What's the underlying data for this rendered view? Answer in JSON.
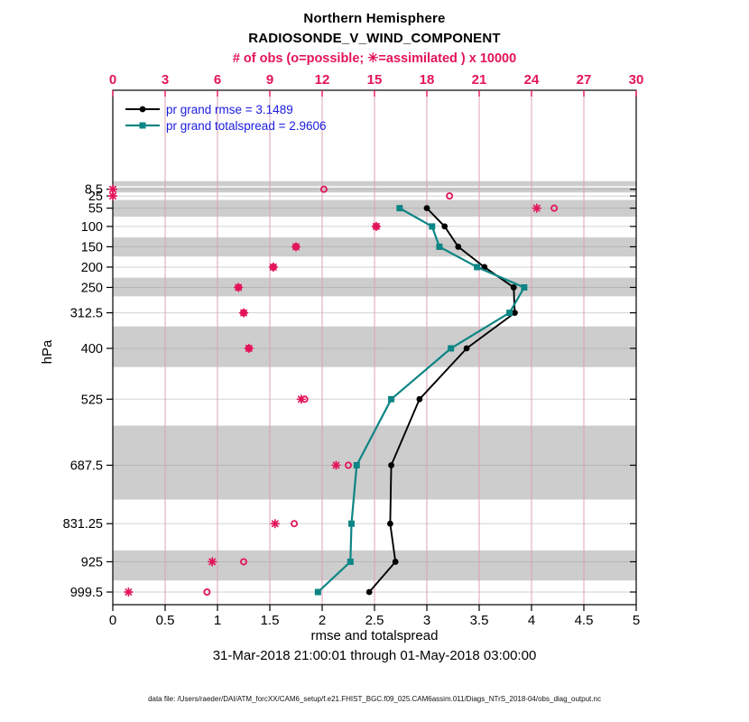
{
  "header": {
    "title_line1": "Northern Hemisphere",
    "title_line2": "RADIOSONDE_V_WIND_COMPONENT"
  },
  "chart_data": {
    "type": "line",
    "orientation": "vertical-profile",
    "title": "Northern Hemisphere RADIOSONDE_V_WIND_COMPONENT",
    "top_axis": {
      "label": "# of obs (o=possible; ✳=assimilated ) x 10000",
      "ticks": [
        0,
        3,
        6,
        9,
        12,
        15,
        18,
        21,
        24,
        27,
        30
      ],
      "range": [
        0,
        30
      ],
      "color": "#e3145a"
    },
    "bottom_axis": {
      "label": "rmse and totalspread",
      "ticks": [
        0,
        0.5,
        1,
        1.5,
        2,
        2.5,
        3,
        3.5,
        4,
        4.5,
        5
      ],
      "range": [
        0,
        5
      ],
      "color": "#000000"
    },
    "left_axis": {
      "label": "hPa",
      "levels_hPa": [
        8.5,
        25,
        55,
        100,
        150,
        200,
        250,
        312.5,
        400,
        525,
        687.5,
        831.25,
        925,
        999.5
      ]
    },
    "legend": [
      {
        "label": "pr grand rmse = 3.1489",
        "color": "#000000",
        "marker": "circle"
      },
      {
        "label": "pr grand totalspread = 2.9606",
        "color": "#0e8585",
        "marker": "square"
      }
    ],
    "series": [
      {
        "name": "pr grand rmse",
        "axis": "bottom",
        "color": "#000000",
        "marker": "circle",
        "line": true,
        "values": [
          null,
          null,
          3.0,
          3.17,
          3.3,
          3.55,
          3.83,
          3.84,
          3.38,
          2.93,
          2.66,
          2.65,
          2.7,
          2.45
        ]
      },
      {
        "name": "pr grand totalspread",
        "axis": "bottom",
        "color": "#0e8585",
        "marker": "square",
        "line": true,
        "values": [
          null,
          null,
          2.74,
          3.05,
          3.12,
          3.48,
          3.93,
          3.79,
          3.23,
          2.66,
          2.33,
          2.28,
          2.27,
          1.96
        ]
      },
      {
        "name": "possible obs x10000",
        "axis": "top",
        "color": "#e3145a",
        "marker": "open-circle",
        "line": false,
        "values": [
          12.1,
          19.3,
          25.3,
          15.1,
          10.5,
          9.2,
          7.2,
          7.5,
          7.8,
          11.0,
          13.5,
          10.4,
          7.5,
          5.4
        ]
      },
      {
        "name": "assimilated obs x10000",
        "axis": "top",
        "color": "#e3145a",
        "marker": "asterisk",
        "line": false,
        "values": [
          0,
          0,
          24.3,
          15.1,
          10.5,
          9.2,
          7.2,
          7.5,
          7.8,
          10.8,
          12.8,
          9.3,
          5.7,
          0.9
        ]
      }
    ],
    "shaded_layers_hPa": [
      [
        -11.5,
        1
      ],
      [
        4,
        16.5
      ],
      [
        35,
        76
      ],
      [
        127,
        174
      ],
      [
        226,
        272
      ],
      [
        346,
        446
      ],
      [
        590,
        772
      ],
      [
        897,
        971
      ]
    ],
    "grid": {
      "vertical": true,
      "horizontal": true,
      "vertical_color": "#dfa0b4",
      "band_color": "#cdcdcd"
    }
  },
  "footer": {
    "date_range": "31-Mar-2018 21:00:01 through 01-May-2018 03:00:00",
    "data_file": "data file: /Users/raeder/DAI/ATM_forcXX/CAM6_setup/f.e21.FHIST_BGC.f09_025.CAM6assim.011/Diags_NTrS_2018-04/obs_diag_output.nc"
  }
}
